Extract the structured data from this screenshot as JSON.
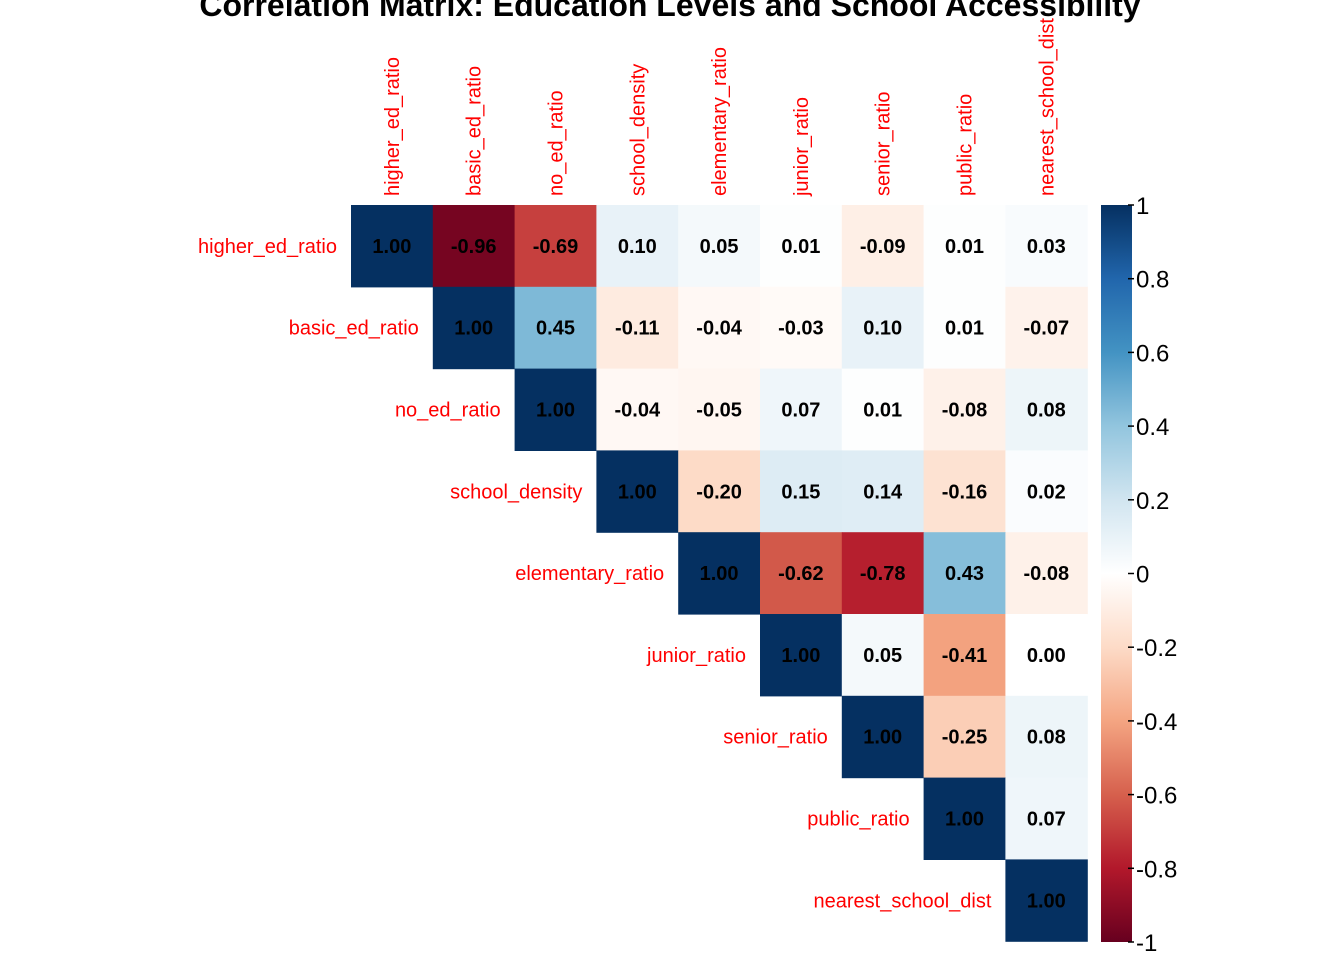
{
  "chart_data": {
    "type": "heatmap",
    "title": "Correlation Matrix: Education Levels and School Accessibility",
    "variables": [
      "higher_ed_ratio",
      "basic_ed_ratio",
      "no_ed_ratio",
      "school_density",
      "elementary_ratio",
      "junior_ratio",
      "senior_ratio",
      "public_ratio",
      "nearest_school_dist"
    ],
    "layout": "upper-triangle",
    "matrix": [
      [
        1.0,
        -0.96,
        -0.69,
        0.1,
        0.05,
        0.01,
        -0.09,
        0.01,
        0.03
      ],
      [
        null,
        1.0,
        0.45,
        -0.11,
        -0.04,
        -0.03,
        0.1,
        0.01,
        -0.07
      ],
      [
        null,
        null,
        1.0,
        -0.04,
        -0.05,
        0.07,
        0.01,
        -0.08,
        0.08
      ],
      [
        null,
        null,
        null,
        1.0,
        -0.2,
        0.15,
        0.14,
        -0.16,
        0.02
      ],
      [
        null,
        null,
        null,
        null,
        1.0,
        -0.62,
        -0.78,
        0.43,
        -0.08
      ],
      [
        null,
        null,
        null,
        null,
        null,
        1.0,
        0.05,
        -0.41,
        0.0
      ],
      [
        null,
        null,
        null,
        null,
        null,
        null,
        1.0,
        -0.25,
        0.08
      ],
      [
        null,
        null,
        null,
        null,
        null,
        null,
        null,
        1.0,
        0.07
      ],
      [
        null,
        null,
        null,
        null,
        null,
        null,
        null,
        null,
        1.0
      ]
    ],
    "value_format": "2 decimals",
    "colorbar": {
      "range": [
        -1,
        1
      ],
      "ticks": [
        "1",
        "0.8",
        "0.6",
        "0.4",
        "0.2",
        "0",
        "-0.2",
        "-0.4",
        "-0.6",
        "-0.8",
        "-1"
      ],
      "placement": "right"
    },
    "colors": {
      "negative_scale": [
        "#67001F",
        "#B2182B",
        "#D6604D",
        "#F4A582",
        "#FDDBC7",
        "#FFFFFF"
      ],
      "positive_scale": [
        "#FFFFFF",
        "#D1E5F0",
        "#92C5DE",
        "#4393C3",
        "#2166AC",
        "#053061"
      ],
      "label_color": "#FF0000",
      "cell_text_color": "#000000"
    }
  }
}
